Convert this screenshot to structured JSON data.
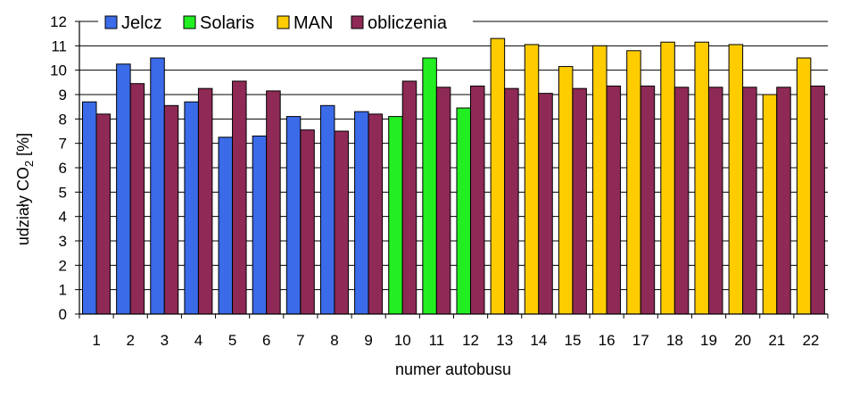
{
  "chart_data": {
    "type": "bar",
    "xlabel": "numer autobusu",
    "ylabel_main": "udziały CO",
    "ylabel_sub": "2",
    "ylabel_unit": " [%]",
    "ylim": [
      0,
      12
    ],
    "yticks": [
      0,
      1,
      2,
      3,
      4,
      5,
      6,
      7,
      8,
      9,
      10,
      11,
      12
    ],
    "grid": true,
    "legend_position": "top",
    "categories": [
      "1",
      "2",
      "3",
      "4",
      "5",
      "6",
      "7",
      "8",
      "9",
      "10",
      "11",
      "12",
      "13",
      "14",
      "15",
      "16",
      "17",
      "18",
      "19",
      "20",
      "21",
      "22"
    ],
    "groups": [
      {
        "name": "Jelcz",
        "color": "#3b6be8"
      },
      {
        "name": "Solaris",
        "color": "#22ee22"
      },
      {
        "name": "MAN",
        "color": "#ffcc00"
      },
      {
        "name": "obliczenia",
        "color": "#8e2a55"
      }
    ],
    "measured": {
      "values": [
        8.7,
        10.25,
        10.5,
        8.7,
        7.25,
        7.3,
        8.1,
        8.55,
        8.3,
        8.1,
        10.5,
        8.45,
        11.3,
        11.05,
        10.15,
        11.0,
        10.8,
        11.15,
        11.15,
        11.05,
        9.0,
        10.5
      ],
      "group_index": [
        0,
        0,
        0,
        0,
        0,
        0,
        0,
        0,
        0,
        1,
        1,
        1,
        2,
        2,
        2,
        2,
        2,
        2,
        2,
        2,
        2,
        2
      ]
    },
    "calculated": {
      "name": "obliczenia",
      "values": [
        8.2,
        9.45,
        8.55,
        9.25,
        9.55,
        9.15,
        7.55,
        7.5,
        8.2,
        9.55,
        9.3,
        9.35,
        9.25,
        9.05,
        9.25,
        9.35,
        9.35,
        9.3,
        9.3,
        9.3,
        9.3,
        9.35
      ]
    }
  }
}
